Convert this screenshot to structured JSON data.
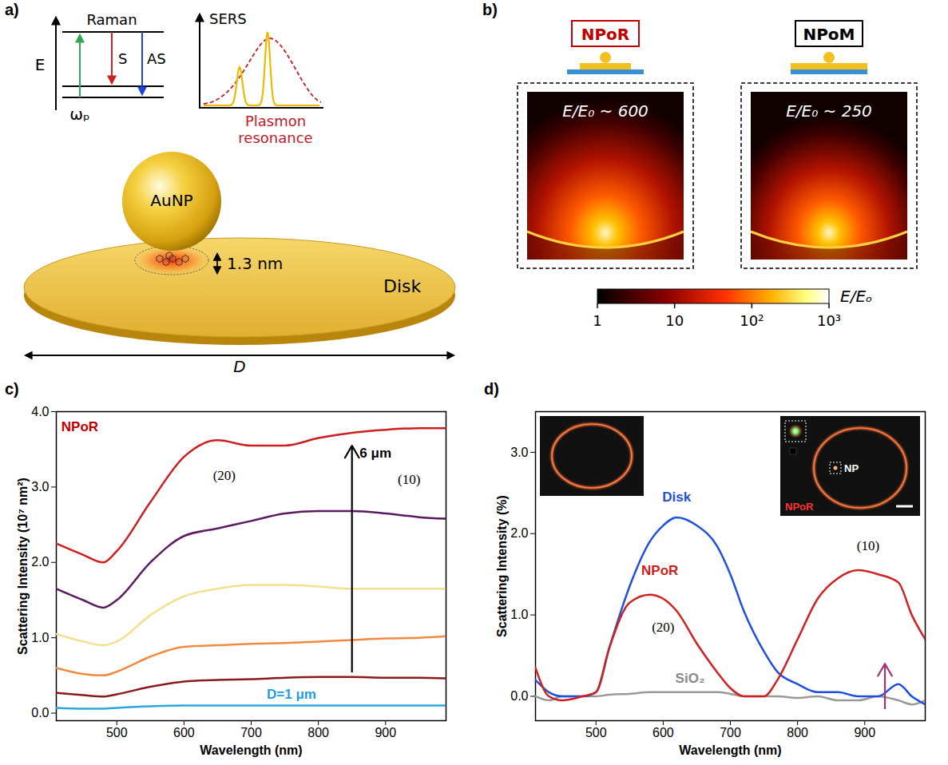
{
  "panels": {
    "a": {
      "label": "a)",
      "energy_axis": "E",
      "upper_level": "Raman",
      "pump": "ωₚ",
      "stokes": "S",
      "anti_stokes": "AS",
      "spectrum_axis": "SERS",
      "plasmon_label": "Plasmon resonance",
      "particle": "AuNP",
      "gap": "1.3 nm",
      "disk": "Disk",
      "diameter": "D"
    },
    "b": {
      "label": "b)",
      "structures": [
        {
          "name": "NPoR",
          "color": "#c00000",
          "enhancement": "E/E₀ ~ 600"
        },
        {
          "name": "NPoM",
          "color": "#000000",
          "enhancement": "E/E₀ ~ 250"
        }
      ],
      "colorbar": {
        "label": "E/Eₒ",
        "range": [
          1,
          1000
        ],
        "log": true,
        "ticks": [
          1,
          10,
          {
            "value": 100,
            "label": "10²"
          },
          {
            "value": 1000,
            "label": "10³"
          }
        ]
      }
    }
  },
  "chart_data": [
    {
      "type": "line",
      "panel_label": "c)",
      "x_label": "Wavelength (nm)",
      "y_label": "Scattering Intensity (10⁷ nm²)",
      "x": [
        410,
        450,
        480,
        500,
        550,
        600,
        650,
        700,
        750,
        800,
        850,
        900,
        950,
        990
      ],
      "xlim": [
        410,
        990
      ],
      "xticks": [
        500,
        600,
        700,
        800,
        900
      ],
      "ylim": [
        -0.1,
        4
      ],
      "yticks": [
        0,
        1,
        2,
        3,
        4
      ],
      "series": [
        {
          "color": "#29a8e0",
          "values": [
            0.07,
            0.06,
            0.06,
            0.07,
            0.09,
            0.1,
            0.1,
            0.1,
            0.1,
            0.1,
            0.1,
            0.1,
            0.1,
            0.1
          ]
        },
        {
          "color": "#8b1a1a",
          "values": [
            0.27,
            0.24,
            0.22,
            0.25,
            0.35,
            0.42,
            0.44,
            0.45,
            0.47,
            0.48,
            0.48,
            0.47,
            0.47,
            0.46
          ]
        },
        {
          "color": "#f08a40",
          "values": [
            0.6,
            0.52,
            0.5,
            0.55,
            0.75,
            0.88,
            0.9,
            0.92,
            0.93,
            0.95,
            0.97,
            0.99,
            1.0,
            1.02
          ]
        },
        {
          "color": "#f2e08e",
          "values": [
            1.05,
            0.95,
            0.9,
            0.95,
            1.3,
            1.55,
            1.65,
            1.7,
            1.7,
            1.68,
            1.65,
            1.65,
            1.65,
            1.65
          ]
        },
        {
          "color": "#5a1a5e",
          "values": [
            1.65,
            1.5,
            1.4,
            1.5,
            2.0,
            2.35,
            2.45,
            2.55,
            2.65,
            2.68,
            2.68,
            2.65,
            2.6,
            2.58
          ]
        },
        {
          "color": "#cc1f1f",
          "values": [
            2.25,
            2.1,
            2.0,
            2.15,
            2.8,
            3.4,
            3.62,
            3.55,
            3.55,
            3.65,
            3.72,
            3.76,
            3.78,
            3.78
          ]
        }
      ],
      "annotations": [
        {
          "text": "NPoR",
          "x": 445,
          "y": 3.8,
          "color": "#c00000"
        },
        {
          "text": "(20)",
          "x": 660,
          "y": 3.15,
          "color": "#000000"
        },
        {
          "text": "(10)",
          "x": 935,
          "y": 3.1,
          "color": "#000000"
        },
        {
          "text": "6 μm",
          "x": 885,
          "y": 3.45,
          "color": "#000000"
        },
        {
          "text": "D=1 μm",
          "x": 760,
          "y": 0.25,
          "color": "#1f9de0"
        }
      ],
      "arrows": [
        {
          "x1": 850,
          "y1": 0.55,
          "x2": 850,
          "y2": 3.55,
          "color": "#000000"
        }
      ]
    },
    {
      "type": "line",
      "panel_label": "d)",
      "x_label": "Wavelength (nm)",
      "y_label": "Scattering Intensity (%)",
      "x": [
        410,
        430,
        450,
        480,
        500,
        520,
        550,
        580,
        600,
        620,
        650,
        680,
        700,
        720,
        750,
        770,
        800,
        830,
        860,
        890,
        920,
        950,
        970,
        990
      ],
      "xlim": [
        410,
        990
      ],
      "xticks": [
        500,
        600,
        700,
        800,
        900
      ],
      "ylim": [
        -0.3,
        3.5
      ],
      "yticks": [
        0,
        1,
        2,
        3
      ],
      "series": [
        {
          "color": "#999999",
          "values": [
            0.0,
            -0.05,
            0.0,
            0.0,
            0.0,
            0.02,
            0.03,
            0.05,
            0.05,
            0.05,
            0.05,
            0.05,
            0.03,
            0.0,
            0.0,
            0.0,
            -0.02,
            0.0,
            -0.05,
            -0.05,
            0.0,
            -0.05,
            -0.1,
            -0.05
          ]
        },
        {
          "color": "#1f4fe0",
          "values": [
            0.2,
            0.05,
            0.0,
            0.0,
            0.05,
            0.6,
            1.35,
            1.9,
            2.1,
            2.2,
            2.1,
            1.85,
            1.5,
            1.05,
            0.55,
            0.3,
            0.15,
            0.05,
            0.05,
            0.0,
            0.0,
            0.15,
            0.0,
            -0.1
          ]
        },
        {
          "color": "#d02020",
          "values": [
            0.35,
            0.0,
            -0.05,
            0.0,
            0.05,
            0.6,
            1.15,
            1.25,
            1.2,
            1.05,
            0.65,
            0.3,
            0.1,
            0.0,
            0.0,
            0.2,
            0.7,
            1.2,
            1.45,
            1.55,
            1.5,
            1.4,
            1.0,
            0.7
          ]
        }
      ],
      "annotations": [
        {
          "text": "Disk",
          "x": 620,
          "y": 2.45,
          "color": "#1f4fe0"
        },
        {
          "text": "NPoR",
          "x": 595,
          "y": 1.55,
          "color": "#d02020"
        },
        {
          "text": "(20)",
          "x": 600,
          "y": 0.85,
          "color": "#000000"
        },
        {
          "text": "(10)",
          "x": 905,
          "y": 1.85,
          "color": "#000000"
        },
        {
          "text": "SiO₂",
          "x": 640,
          "y": 0.22,
          "color": "#888888"
        }
      ],
      "arrows": [
        {
          "x1": 930,
          "y1": -0.15,
          "x2": 930,
          "y2": 0.4,
          "color": "#a0307a"
        }
      ],
      "inset_labels": [
        "NP",
        "NPoR"
      ]
    }
  ]
}
